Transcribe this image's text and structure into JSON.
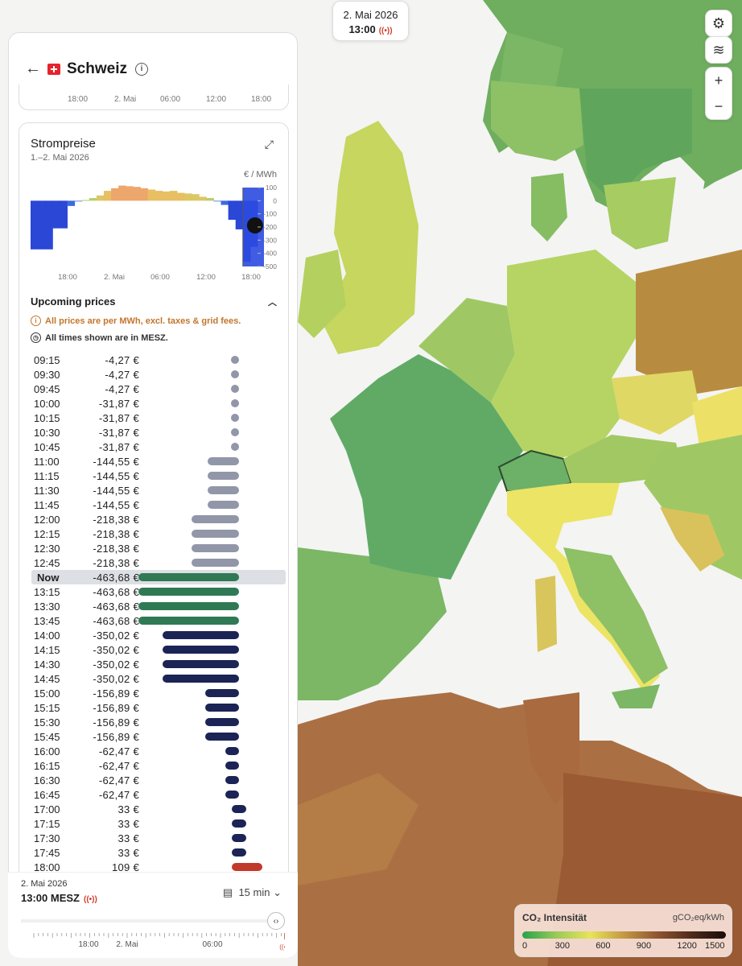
{
  "header_time": {
    "date": "2. Mai 2026",
    "time": "13:00"
  },
  "country": "Schweiz",
  "top_chart_ticks": [
    "18:00",
    "2. Mai",
    "06:00",
    "12:00",
    "18:00"
  ],
  "price_card": {
    "title": "Strompreise",
    "subtitle": "1.–2. Mai 2026",
    "unit": "€ / MWh",
    "y_ticks": [
      "100",
      "0",
      "-100",
      "-200",
      "-300",
      "-400",
      "-500"
    ],
    "x_ticks": [
      "18:00",
      "2. Mai",
      "06:00",
      "12:00",
      "18:00"
    ]
  },
  "chart_data": {
    "type": "bar",
    "ylabel": "€ / MWh",
    "ylim": [
      -500,
      100
    ],
    "values": [
      -370,
      -370,
      -370,
      -210,
      -210,
      -40,
      -5,
      5,
      20,
      40,
      75,
      95,
      115,
      110,
      105,
      95,
      85,
      75,
      70,
      75,
      60,
      55,
      50,
      30,
      20,
      -4,
      -32,
      -145,
      -218,
      -464,
      -350
    ]
  },
  "upcoming": {
    "title": "Upcoming prices",
    "note_price": "All prices are per MWh, excl. taxes & grid fees.",
    "note_time": "All times shown are in MESZ.",
    "now_label": "Now",
    "rows": [
      {
        "time": "09:15",
        "price": "-4,27 €",
        "value": -4.27
      },
      {
        "time": "09:30",
        "price": "-4,27 €",
        "value": -4.27
      },
      {
        "time": "09:45",
        "price": "-4,27 €",
        "value": -4.27
      },
      {
        "time": "10:00",
        "price": "-31,87 €",
        "value": -31.87
      },
      {
        "time": "10:15",
        "price": "-31,87 €",
        "value": -31.87
      },
      {
        "time": "10:30",
        "price": "-31,87 €",
        "value": -31.87
      },
      {
        "time": "10:45",
        "price": "-31,87 €",
        "value": -31.87
      },
      {
        "time": "11:00",
        "price": "-144,55 €",
        "value": -144.55
      },
      {
        "time": "11:15",
        "price": "-144,55 €",
        "value": -144.55
      },
      {
        "time": "11:30",
        "price": "-144,55 €",
        "value": -144.55
      },
      {
        "time": "11:45",
        "price": "-144,55 €",
        "value": -144.55
      },
      {
        "time": "12:00",
        "price": "-218,38 €",
        "value": -218.38
      },
      {
        "time": "12:15",
        "price": "-218,38 €",
        "value": -218.38
      },
      {
        "time": "12:30",
        "price": "-218,38 €",
        "value": -218.38
      },
      {
        "time": "12:45",
        "price": "-218,38 €",
        "value": -218.38
      },
      {
        "time": "Now",
        "price": "-463,68 €",
        "value": -463.68,
        "now": true
      },
      {
        "time": "13:15",
        "price": "-463,68 €",
        "value": -463.68
      },
      {
        "time": "13:30",
        "price": "-463,68 €",
        "value": -463.68
      },
      {
        "time": "13:45",
        "price": "-463,68 €",
        "value": -463.68
      },
      {
        "time": "14:00",
        "price": "-350,02 €",
        "value": -350.02
      },
      {
        "time": "14:15",
        "price": "-350,02 €",
        "value": -350.02
      },
      {
        "time": "14:30",
        "price": "-350,02 €",
        "value": -350.02
      },
      {
        "time": "14:45",
        "price": "-350,02 €",
        "value": -350.02
      },
      {
        "time": "15:00",
        "price": "-156,89 €",
        "value": -156.89
      },
      {
        "time": "15:15",
        "price": "-156,89 €",
        "value": -156.89
      },
      {
        "time": "15:30",
        "price": "-156,89 €",
        "value": -156.89
      },
      {
        "time": "15:45",
        "price": "-156,89 €",
        "value": -156.89
      },
      {
        "time": "16:00",
        "price": "-62,47 €",
        "value": -62.47
      },
      {
        "time": "16:15",
        "price": "-62,47 €",
        "value": -62.47
      },
      {
        "time": "16:30",
        "price": "-62,47 €",
        "value": -62.47
      },
      {
        "time": "16:45",
        "price": "-62,47 €",
        "value": -62.47
      },
      {
        "time": "17:00",
        "price": "33 €",
        "value": 33
      },
      {
        "time": "17:15",
        "price": "33 €",
        "value": 33
      },
      {
        "time": "17:30",
        "price": "33 €",
        "value": 33
      },
      {
        "time": "17:45",
        "price": "33 €",
        "value": 33
      },
      {
        "time": "18:00",
        "price": "109 €",
        "value": 109
      }
    ]
  },
  "bottom": {
    "date": "2. Mai 2026",
    "time": "13:00 MESZ",
    "interval": "15 min",
    "ticks": [
      "18:00",
      "2. Mai",
      "06:00"
    ]
  },
  "legend": {
    "title": "CO₂ Intensität",
    "unit": "gCO₂eq/kWh",
    "ticks": [
      "0",
      "300",
      "600",
      "900",
      "1200",
      "1500"
    ]
  },
  "colors": {
    "past_bar": "#9196a8",
    "now_bar": "#2f7a55",
    "future_neg": "#1b2455",
    "future_pos": "#c0392b",
    "live": "#d43c2c"
  }
}
